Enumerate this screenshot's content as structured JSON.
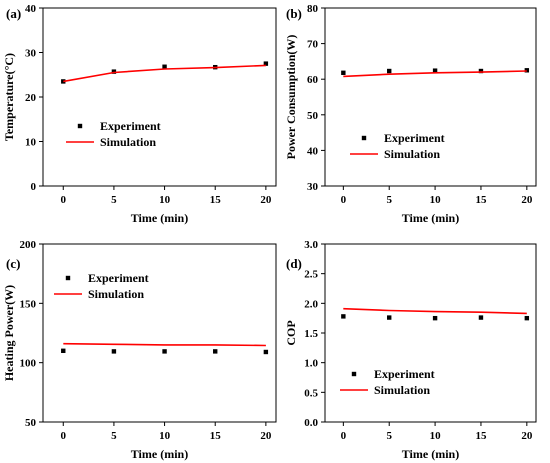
{
  "colors": {
    "simulation": "#ff0000",
    "experiment": "#000000",
    "axis": "#000000"
  },
  "chart_data": [
    {
      "type": "line",
      "panel": "(a)",
      "xlabel": "Time (min)",
      "ylabel": "Temperature(°C)",
      "xlim": [
        -2,
        21
      ],
      "ylim": [
        0,
        40
      ],
      "xticks": [
        "0",
        "5",
        "10",
        "15",
        "20"
      ],
      "yticks": [
        "0",
        "10",
        "20",
        "30",
        "40"
      ],
      "legend_position": "middle-left",
      "x": [
        0,
        5,
        10,
        15,
        20
      ],
      "series": [
        {
          "name": "Experiment",
          "style": "scatter",
          "values": [
            23.5,
            25.7,
            26.8,
            26.7,
            27.5
          ]
        },
        {
          "name": "Simulation",
          "style": "line",
          "values": [
            23.5,
            25.5,
            26.3,
            26.6,
            27.1
          ]
        }
      ]
    },
    {
      "type": "line",
      "panel": "(b)",
      "xlabel": "Time (min)",
      "ylabel": "Power Consumption(W)",
      "xlim": [
        -2,
        21
      ],
      "ylim": [
        30,
        80
      ],
      "xticks": [
        "0",
        "5",
        "10",
        "15",
        "20"
      ],
      "yticks": [
        "30",
        "40",
        "50",
        "60",
        "70",
        "80"
      ],
      "legend_position": "lower-center",
      "x": [
        0,
        5,
        10,
        15,
        20
      ],
      "series": [
        {
          "name": "Experiment",
          "style": "scatter",
          "values": [
            61.8,
            62.3,
            62.4,
            62.3,
            62.5
          ]
        },
        {
          "name": "Simulation",
          "style": "line",
          "values": [
            60.8,
            61.4,
            61.8,
            62.0,
            62.3
          ]
        }
      ]
    },
    {
      "type": "line",
      "panel": "(c)",
      "xlabel": "Time (min)",
      "ylabel": "Heating Power(W)",
      "xlim": [
        -2,
        21
      ],
      "ylim": [
        50,
        200
      ],
      "xticks": [
        "0",
        "5",
        "10",
        "15",
        "20"
      ],
      "yticks": [
        "50",
        "100",
        "150",
        "200"
      ],
      "legend_position": "upper-center",
      "x": [
        0,
        5,
        10,
        15,
        20
      ],
      "series": [
        {
          "name": "Experiment",
          "style": "scatter",
          "values": [
            110,
            109.5,
            109.5,
            109.5,
            109
          ]
        },
        {
          "name": "Simulation",
          "style": "line",
          "values": [
            116,
            115.5,
            115,
            115,
            114.5
          ]
        }
      ]
    },
    {
      "type": "line",
      "panel": "(d)",
      "xlabel": "Time (min)",
      "ylabel": "COP",
      "xlim": [
        -2,
        21
      ],
      "ylim": [
        0,
        3
      ],
      "xticks": [
        "0",
        "5",
        "10",
        "15",
        "20"
      ],
      "yticks": [
        "0.0",
        "0.5",
        "1.0",
        "1.5",
        "2.0",
        "2.5",
        "3.0"
      ],
      "legend_position": "lower-center",
      "x": [
        0,
        5,
        10,
        15,
        20
      ],
      "series": [
        {
          "name": "Experiment",
          "style": "scatter",
          "values": [
            1.78,
            1.76,
            1.75,
            1.76,
            1.75
          ]
        },
        {
          "name": "Simulation",
          "style": "line",
          "values": [
            1.91,
            1.88,
            1.86,
            1.85,
            1.83
          ]
        }
      ]
    }
  ]
}
